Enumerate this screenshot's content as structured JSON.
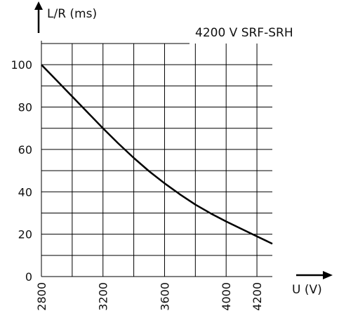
{
  "chart_data": {
    "type": "line",
    "title": "4200 V SRF-SRH",
    "ylabel": "L/R (ms)",
    "xlabel": "U (V)",
    "xlim": [
      2800,
      4300
    ],
    "ylim": [
      0,
      110
    ],
    "x_ticks": [
      "2800",
      "3200",
      "3600",
      "4000",
      "4200"
    ],
    "y_ticks": [
      "0",
      "20",
      "40",
      "60",
      "80",
      "100"
    ],
    "grid": true,
    "series": [
      {
        "x": [
          2800,
          2900,
          3000,
          3100,
          3200,
          3300,
          3400,
          3500,
          3600,
          3700,
          3800,
          3900,
          4000,
          4100,
          4200,
          4300
        ],
        "y": [
          100,
          92.5,
          85,
          77.5,
          70,
          62.8,
          56,
          49.7,
          44,
          38.8,
          34,
          29.8,
          26,
          22.5,
          19,
          15.5
        ]
      }
    ],
    "colors": {
      "line": "#000000",
      "grid": "#000000",
      "text": "#111111"
    }
  }
}
